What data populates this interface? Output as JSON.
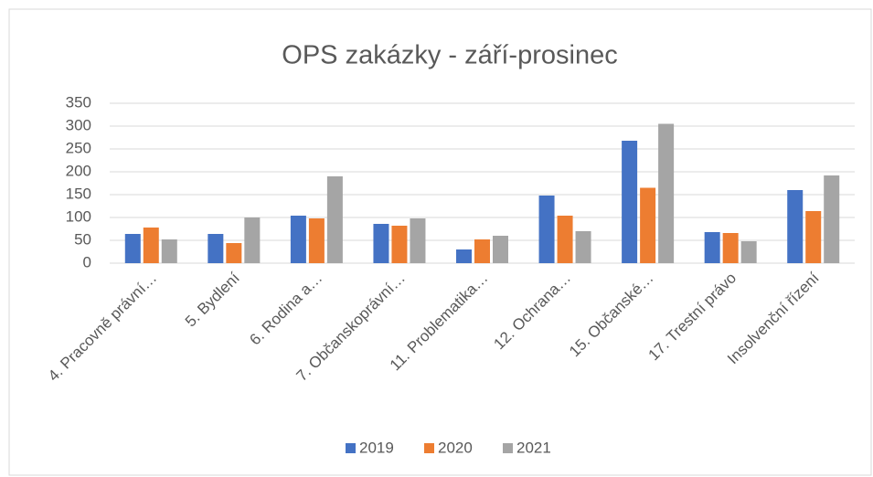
{
  "chart_data": {
    "type": "bar",
    "title": "OPS zakázky - září-prosinec",
    "categories": [
      "4. Pracovně právní…",
      "5. Bydlení",
      "6. Rodina a…",
      "7. Občanskoprávní…",
      "11. Problematika…",
      "12. Ochrana…",
      "15. Občanské…",
      "17. Trestní právo",
      "Insolvenční řízení"
    ],
    "series": [
      {
        "name": "2019",
        "color": "#4472c4",
        "values": [
          64,
          64,
          104,
          86,
          30,
          148,
          268,
          68,
          160
        ]
      },
      {
        "name": "2020",
        "color": "#ed7d31",
        "values": [
          78,
          44,
          98,
          82,
          52,
          104,
          165,
          66,
          114
        ]
      },
      {
        "name": "2021",
        "color": "#a5a5a5",
        "values": [
          52,
          100,
          190,
          98,
          60,
          70,
          305,
          48,
          192
        ]
      }
    ],
    "ylim": [
      0,
      350
    ],
    "yticks": [
      0,
      50,
      100,
      150,
      200,
      250,
      300,
      350
    ],
    "grid": true,
    "legend": "bottom"
  }
}
